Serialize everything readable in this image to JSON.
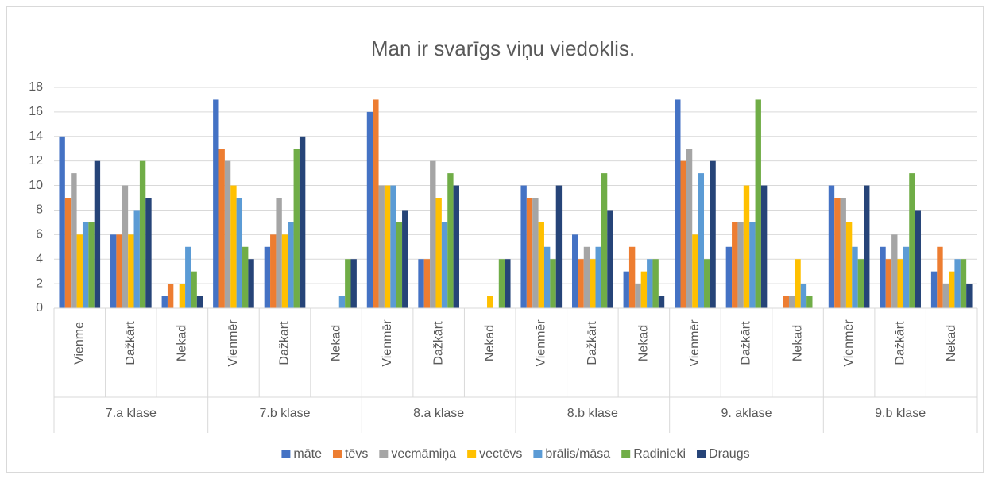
{
  "chart_data": {
    "type": "bar",
    "title": "Man ir svarīgs viņu viedoklis.",
    "categories": [
      "Vienmē",
      "Dažkārt",
      "Nekad",
      "Vienmēr",
      "Dažkārt",
      "Nekad",
      "Vienmēr",
      "Dažkārt",
      "Nekad",
      "Vienmēr",
      "Dažkārt",
      "Nekad",
      "Vienmēr",
      "Dažkārt",
      "Nekad",
      "Vienmēr",
      "Dažkārt",
      "Nekad"
    ],
    "groups": [
      "7.a klase",
      "7.b klase",
      "8.a klase",
      "8.b klase",
      "9. aklase",
      "9.b klase"
    ],
    "series": [
      {
        "name": "māte",
        "color": "#4472c4",
        "values": [
          14,
          6,
          1,
          17,
          5,
          0,
          16,
          4,
          0,
          10,
          6,
          3,
          17,
          5,
          0,
          10,
          5,
          3
        ]
      },
      {
        "name": "tēvs",
        "color": "#ed7d31",
        "values": [
          9,
          6,
          2,
          13,
          6,
          0,
          17,
          4,
          0,
          9,
          4,
          5,
          12,
          7,
          1,
          9,
          4,
          5
        ]
      },
      {
        "name": "vecmāmiņa",
        "color": "#a5a5a5",
        "values": [
          11,
          10,
          0,
          12,
          9,
          0,
          10,
          12,
          0,
          9,
          5,
          2,
          13,
          7,
          1,
          9,
          6,
          2
        ]
      },
      {
        "name": "vectēvs",
        "color": "#ffc000",
        "values": [
          6,
          6,
          2,
          10,
          6,
          0,
          10,
          9,
          1,
          7,
          4,
          3,
          6,
          10,
          4,
          7,
          4,
          3
        ]
      },
      {
        "name": "brālis/māsa",
        "color": "#5b9bd5",
        "values": [
          7,
          8,
          5,
          9,
          7,
          1,
          10,
          7,
          0,
          5,
          5,
          4,
          11,
          7,
          2,
          5,
          5,
          4
        ]
      },
      {
        "name": "Radinieki",
        "color": "#70ad47",
        "values": [
          7,
          12,
          3,
          5,
          13,
          4,
          7,
          11,
          4,
          4,
          11,
          4,
          4,
          17,
          1,
          4,
          11,
          4
        ]
      },
      {
        "name": "Draugs",
        "color": "#264478",
        "values": [
          12,
          9,
          1,
          4,
          14,
          4,
          8,
          10,
          4,
          10,
          8,
          1,
          12,
          10,
          0,
          10,
          8,
          2
        ]
      }
    ],
    "ylim": [
      0,
      18
    ],
    "yticks": [
      0,
      2,
      4,
      6,
      8,
      10,
      12,
      14,
      16,
      18
    ],
    "grid": true,
    "legend": "bottom"
  }
}
